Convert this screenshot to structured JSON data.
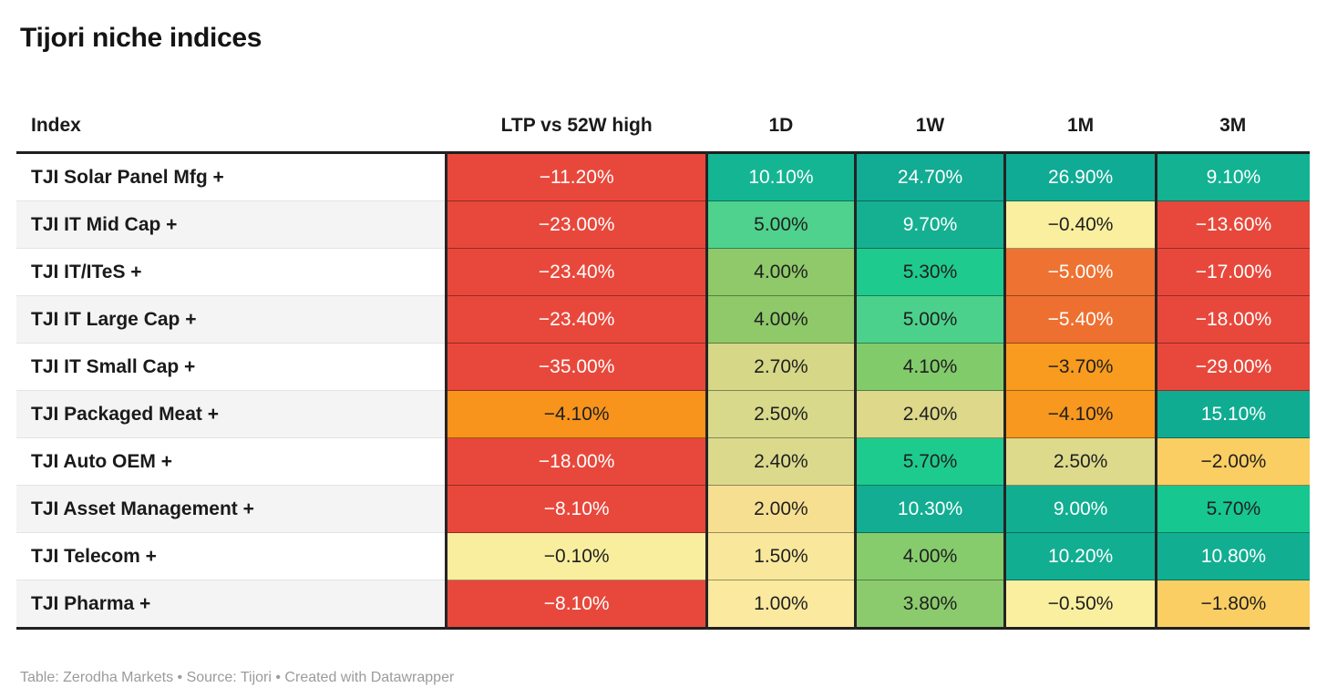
{
  "title": "Tijori niche indices",
  "footer": "Table: Zerodha Markets • Source: Tijori • Created with Datawrapper",
  "colors": {
    "negative_strong": "#e8483b",
    "negative_medium": "#ee7231",
    "negative_mild": "#f8981e",
    "near_zero": "#f9ef9f",
    "positive_mild": "#d8d98a",
    "positive_medium": "#8fc96a",
    "positive_strong": "#12ae92",
    "header_rule": "#1f1f1f"
  },
  "table": {
    "columns": [
      {
        "key": "index",
        "label": "Index"
      },
      {
        "key": "ltp",
        "label": "LTP vs 52W high"
      },
      {
        "key": "d1",
        "label": "1D"
      },
      {
        "key": "w1",
        "label": "1W"
      },
      {
        "key": "m1",
        "label": "1M"
      },
      {
        "key": "m3",
        "label": "3M"
      }
    ],
    "rows": [
      {
        "index": "TJI Solar Panel Mfg +",
        "cells": [
          {
            "value": "−11.20%",
            "bg": "#e8483b",
            "fg": "#ffffff"
          },
          {
            "value": "10.10%",
            "bg": "#14b593",
            "fg": "#ffffff"
          },
          {
            "value": "24.70%",
            "bg": "#12ab93",
            "fg": "#ffffff"
          },
          {
            "value": "26.90%",
            "bg": "#10ab94",
            "fg": "#ffffff"
          },
          {
            "value": "9.10%",
            "bg": "#12b293",
            "fg": "#ffffff"
          }
        ]
      },
      {
        "index": "TJI IT Mid Cap +",
        "cells": [
          {
            "value": "−23.00%",
            "bg": "#e8483b",
            "fg": "#ffffff"
          },
          {
            "value": "5.00%",
            "bg": "#4fd28d",
            "fg": "#1f1f1f"
          },
          {
            "value": "9.70%",
            "bg": "#14b091",
            "fg": "#ffffff"
          },
          {
            "value": "−0.40%",
            "bg": "#f9ef9f",
            "fg": "#1f1f1f"
          },
          {
            "value": "−13.60%",
            "bg": "#e8483b",
            "fg": "#ffffff"
          }
        ]
      },
      {
        "index": "TJI IT/ITeS +",
        "cells": [
          {
            "value": "−23.40%",
            "bg": "#e8483b",
            "fg": "#ffffff"
          },
          {
            "value": "4.00%",
            "bg": "#8fc96a",
            "fg": "#1f1f1f"
          },
          {
            "value": "5.30%",
            "bg": "#1fca8e",
            "fg": "#1f1f1f"
          },
          {
            "value": "−5.00%",
            "bg": "#ee7231",
            "fg": "#ffffff"
          },
          {
            "value": "−17.00%",
            "bg": "#e8483b",
            "fg": "#ffffff"
          }
        ]
      },
      {
        "index": "TJI IT Large Cap +",
        "cells": [
          {
            "value": "−23.40%",
            "bg": "#e8483b",
            "fg": "#ffffff"
          },
          {
            "value": "4.00%",
            "bg": "#8fc96a",
            "fg": "#1f1f1f"
          },
          {
            "value": "5.00%",
            "bg": "#4cd18c",
            "fg": "#1f1f1f"
          },
          {
            "value": "−5.40%",
            "bg": "#ee7030",
            "fg": "#ffffff"
          },
          {
            "value": "−18.00%",
            "bg": "#e8483b",
            "fg": "#ffffff"
          }
        ]
      },
      {
        "index": "TJI IT Small Cap +",
        "cells": [
          {
            "value": "−35.00%",
            "bg": "#e8483b",
            "fg": "#ffffff"
          },
          {
            "value": "2.70%",
            "bg": "#d6d787",
            "fg": "#1f1f1f"
          },
          {
            "value": "4.10%",
            "bg": "#82cb6b",
            "fg": "#1f1f1f"
          },
          {
            "value": "−3.70%",
            "bg": "#f89b1e",
            "fg": "#1f1f1f"
          },
          {
            "value": "−29.00%",
            "bg": "#e8483b",
            "fg": "#ffffff"
          }
        ]
      },
      {
        "index": "TJI Packaged Meat +",
        "cells": [
          {
            "value": "−4.10%",
            "bg": "#f8941c",
            "fg": "#1f1f1f"
          },
          {
            "value": "2.50%",
            "bg": "#d8d98a",
            "fg": "#1f1f1f"
          },
          {
            "value": "2.40%",
            "bg": "#ddd88a",
            "fg": "#1f1f1f"
          },
          {
            "value": "−4.10%",
            "bg": "#f8981e",
            "fg": "#1f1f1f"
          },
          {
            "value": "15.10%",
            "bg": "#0fac92",
            "fg": "#ffffff"
          }
        ]
      },
      {
        "index": "TJI Auto OEM +",
        "cells": [
          {
            "value": "−18.00%",
            "bg": "#e8483b",
            "fg": "#ffffff"
          },
          {
            "value": "2.40%",
            "bg": "#dbda8c",
            "fg": "#1f1f1f"
          },
          {
            "value": "5.70%",
            "bg": "#1ecb8e",
            "fg": "#1f1f1f"
          },
          {
            "value": "2.50%",
            "bg": "#ddda8b",
            "fg": "#1f1f1f"
          },
          {
            "value": "−2.00%",
            "bg": "#fbce63",
            "fg": "#1f1f1f"
          }
        ]
      },
      {
        "index": "TJI Asset Management +",
        "cells": [
          {
            "value": "−8.10%",
            "bg": "#e8483b",
            "fg": "#ffffff"
          },
          {
            "value": "2.00%",
            "bg": "#f7df92",
            "fg": "#1f1f1f"
          },
          {
            "value": "10.30%",
            "bg": "#12ad92",
            "fg": "#ffffff"
          },
          {
            "value": "9.00%",
            "bg": "#12ae92",
            "fg": "#ffffff"
          },
          {
            "value": "5.70%",
            "bg": "#16c78f",
            "fg": "#1f1f1f"
          }
        ]
      },
      {
        "index": "TJI Telecom +",
        "cells": [
          {
            "value": "−0.10%",
            "bg": "#f9ee9e",
            "fg": "#1f1f1f"
          },
          {
            "value": "1.50%",
            "bg": "#f9e89c",
            "fg": "#1f1f1f"
          },
          {
            "value": "4.00%",
            "bg": "#86cc6d",
            "fg": "#1f1f1f"
          },
          {
            "value": "10.20%",
            "bg": "#12ae92",
            "fg": "#ffffff"
          },
          {
            "value": "10.80%",
            "bg": "#12ae92",
            "fg": "#ffffff"
          }
        ]
      },
      {
        "index": "TJI Pharma +",
        "cells": [
          {
            "value": "−8.10%",
            "bg": "#e8483b",
            "fg": "#ffffff"
          },
          {
            "value": "1.00%",
            "bg": "#fae99e",
            "fg": "#1f1f1f"
          },
          {
            "value": "3.80%",
            "bg": "#8bcb6d",
            "fg": "#1f1f1f"
          },
          {
            "value": "−0.50%",
            "bg": "#f9ef9f",
            "fg": "#1f1f1f"
          },
          {
            "value": "−1.80%",
            "bg": "#fbce63",
            "fg": "#1f1f1f"
          }
        ]
      }
    ]
  },
  "chart_data": {
    "type": "table",
    "title": "Tijori niche indices",
    "columns": [
      "Index",
      "LTP vs 52W high",
      "1D",
      "1W",
      "1M",
      "3M"
    ],
    "rows": [
      [
        "TJI Solar Panel Mfg +",
        -11.2,
        10.1,
        24.7,
        26.9,
        9.1
      ],
      [
        "TJI IT Mid Cap +",
        -23.0,
        5.0,
        9.7,
        -0.4,
        -13.6
      ],
      [
        "TJI IT/ITeS +",
        -23.4,
        4.0,
        5.3,
        -5.0,
        -17.0
      ],
      [
        "TJI IT Large Cap +",
        -23.4,
        4.0,
        5.0,
        -5.4,
        -18.0
      ],
      [
        "TJI IT Small Cap +",
        -35.0,
        2.7,
        4.1,
        -3.7,
        -29.0
      ],
      [
        "TJI Packaged Meat +",
        -4.1,
        2.5,
        2.4,
        -4.1,
        15.1
      ],
      [
        "TJI Auto OEM +",
        -18.0,
        2.4,
        5.7,
        2.5,
        -2.0
      ],
      [
        "TJI Asset Management +",
        -8.1,
        2.0,
        10.3,
        9.0,
        5.7
      ],
      [
        "TJI Telecom +",
        -0.1,
        1.5,
        4.0,
        10.2,
        10.8
      ],
      [
        "TJI Pharma +",
        -8.1,
        1.0,
        3.8,
        -0.5,
        -1.8
      ]
    ],
    "units": "percent",
    "color_scale": "diverging red-yellow-green heatmap on value cells",
    "footer": "Table: Zerodha Markets • Source: Tijori • Created with Datawrapper"
  }
}
